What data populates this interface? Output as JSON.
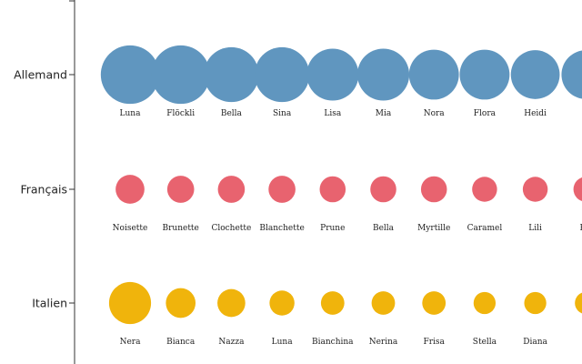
{
  "chart_data": {
    "type": "scatter",
    "categories": [
      "Allemand",
      "Français",
      "Italien"
    ],
    "series": [
      {
        "category": "Allemand",
        "color": "#6096bf",
        "items": [
          {
            "label": "Luna",
            "value": 33
          },
          {
            "label": "Flöckli",
            "value": 33
          },
          {
            "label": "Bella",
            "value": 29
          },
          {
            "label": "Sina",
            "value": 29
          },
          {
            "label": "Lisa",
            "value": 26
          },
          {
            "label": "Mia",
            "value": 26
          },
          {
            "label": "Nora",
            "value": 24
          },
          {
            "label": "Flora",
            "value": 24
          },
          {
            "label": "Heidi",
            "value": 23
          },
          {
            "label": "L",
            "value": 23
          }
        ]
      },
      {
        "category": "Français",
        "color": "#e8636f",
        "items": [
          {
            "label": "Noisette",
            "value": 8
          },
          {
            "label": "Brunette",
            "value": 7
          },
          {
            "label": "Clochette",
            "value": 7
          },
          {
            "label": "Blanchette",
            "value": 7
          },
          {
            "label": "Prune",
            "value": 6.5
          },
          {
            "label": "Bella",
            "value": 6.5
          },
          {
            "label": "Myrtille",
            "value": 6.5
          },
          {
            "label": "Caramel",
            "value": 6
          },
          {
            "label": "Lili",
            "value": 6
          },
          {
            "label": "Pis",
            "value": 6
          }
        ]
      },
      {
        "category": "Italien",
        "color": "#f0b40c",
        "items": [
          {
            "label": "Nera",
            "value": 17
          },
          {
            "label": "Bianca",
            "value": 8.5
          },
          {
            "label": "Nazza",
            "value": 7.5
          },
          {
            "label": "Luna",
            "value": 6
          },
          {
            "label": "Bianchina",
            "value": 5.3
          },
          {
            "label": "Nerina",
            "value": 5.3
          },
          {
            "label": "Frisa",
            "value": 5.3
          },
          {
            "label": "Stella",
            "value": 4.7
          },
          {
            "label": "Diana",
            "value": 4.7
          },
          {
            "label": "H",
            "value": 4.7
          }
        ]
      }
    ],
    "grid": false,
    "legend": "none"
  }
}
